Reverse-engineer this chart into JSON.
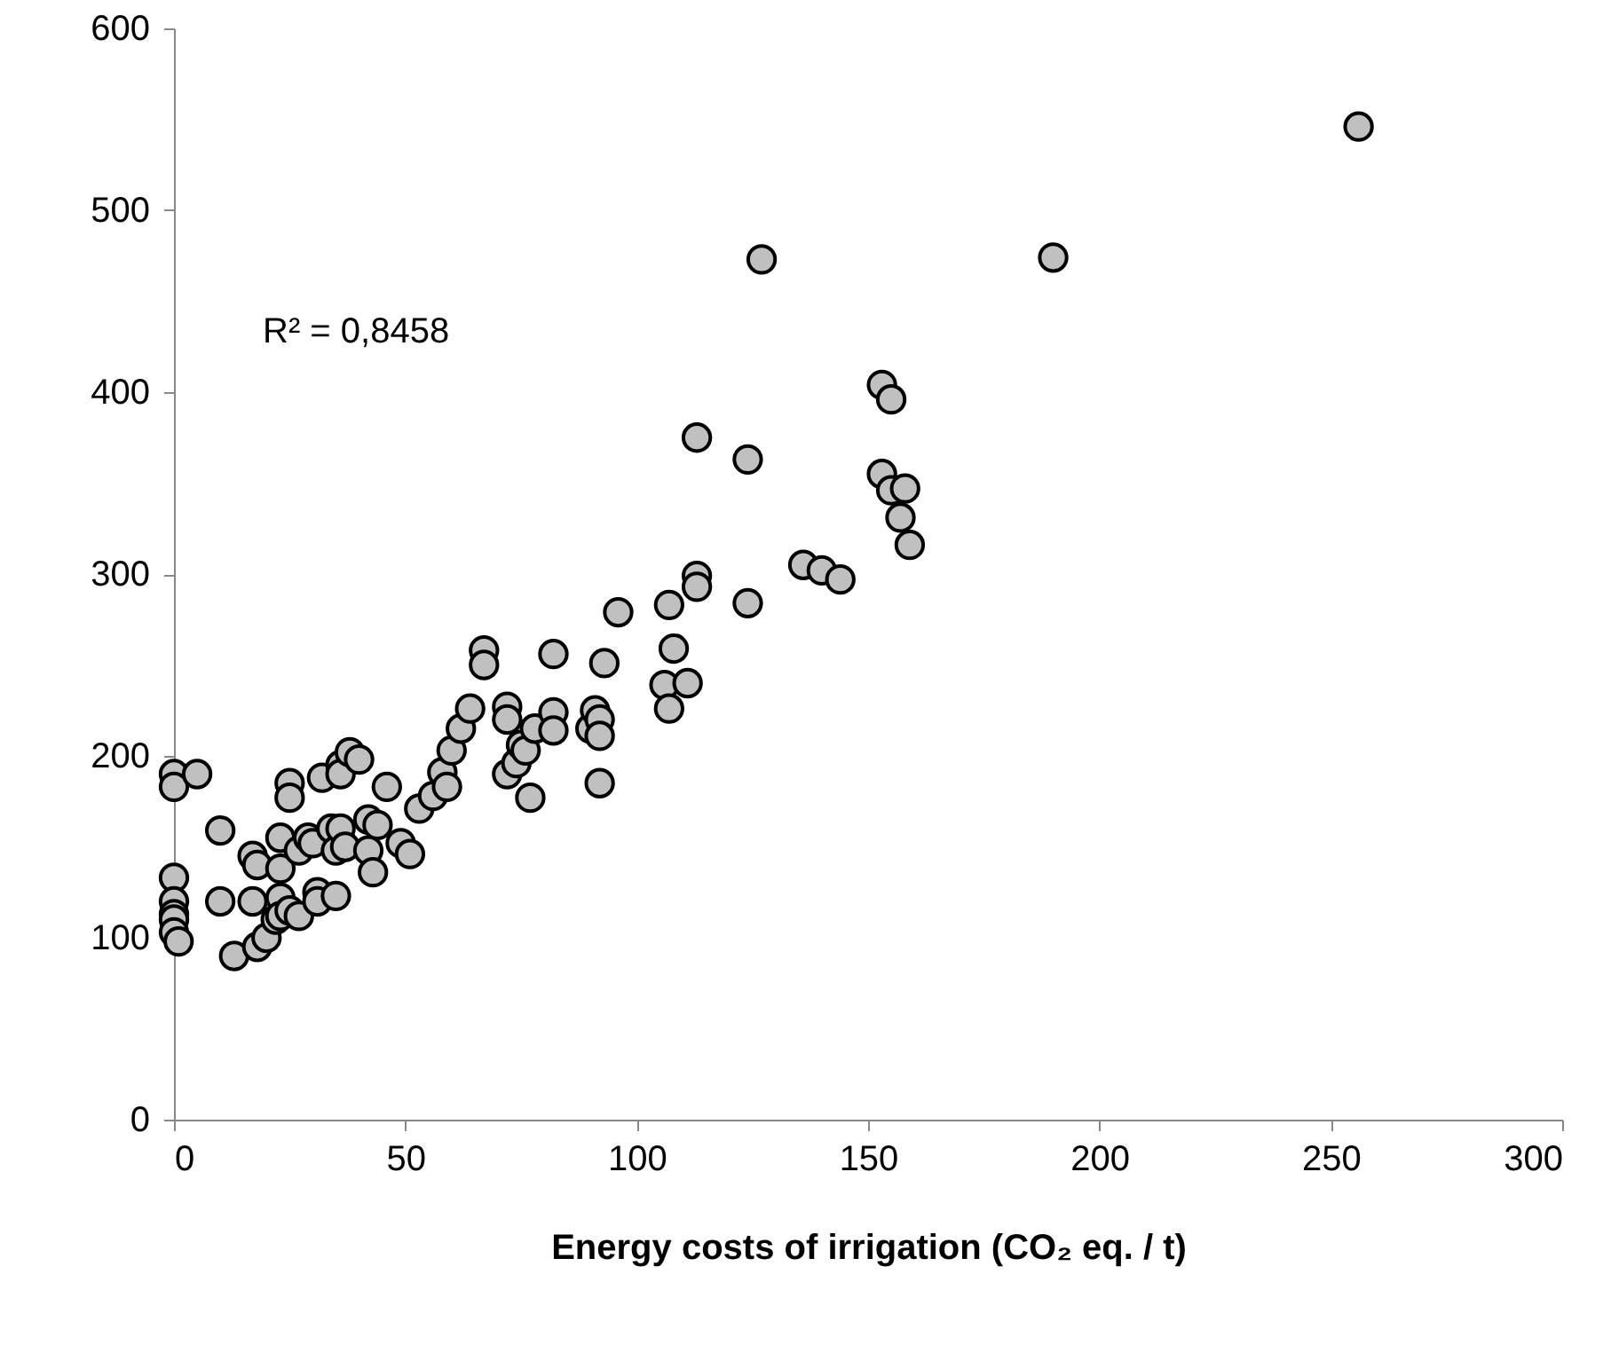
{
  "chart_data": {
    "type": "scatter",
    "xlabel": "Energy costs of irrigation (CO₂ eq. / t)",
    "annotations": [
      "R² = 0,8458"
    ],
    "xlim": [
      0,
      300
    ],
    "xticks": [
      0,
      50,
      100,
      150,
      200,
      250,
      300
    ],
    "ylim": [
      0,
      600
    ],
    "yticks": [
      0,
      100,
      200,
      300,
      400,
      500,
      600
    ],
    "grid": false,
    "marker": "circle",
    "series": [
      {
        "color": "#c0c0c0",
        "x": [
          0,
          0,
          0,
          0,
          0,
          0,
          0,
          1,
          5,
          10,
          10,
          13,
          17,
          17,
          18,
          18,
          20,
          22,
          23,
          23,
          23,
          23,
          25,
          25,
          25,
          27,
          27,
          29,
          30,
          31,
          31,
          32,
          34,
          35,
          35,
          36,
          36,
          36,
          37,
          38,
          40,
          42,
          42,
          43,
          44,
          46,
          49,
          51,
          53,
          56,
          58,
          59,
          60,
          62,
          64,
          67,
          67,
          72,
          72,
          72,
          74,
          75,
          76,
          77,
          78,
          82,
          82,
          82,
          90,
          91,
          92,
          92,
          92,
          93,
          96,
          106,
          107,
          107,
          108,
          111,
          113,
          113,
          113,
          124,
          124,
          127,
          136,
          140,
          144,
          153,
          153,
          155,
          155,
          157,
          158,
          159,
          190,
          256
        ],
        "values": [
          190,
          183,
          133,
          120,
          113,
          110,
          103,
          98,
          190,
          159,
          120,
          90,
          145,
          120,
          140,
          95,
          100,
          110,
          155,
          138,
          122,
          112,
          185,
          177,
          115,
          148,
          112,
          155,
          152,
          125,
          120,
          188,
          160,
          148,
          123,
          195,
          190,
          160,
          150,
          202,
          198,
          165,
          148,
          136,
          162,
          183,
          152,
          146,
          171,
          178,
          191,
          183,
          203,
          215,
          226,
          258,
          250,
          227,
          220,
          190,
          196,
          206,
          203,
          177,
          215,
          256,
          224,
          214,
          215,
          225,
          220,
          211,
          185,
          251,
          279,
          239,
          283,
          226,
          259,
          240,
          375,
          299,
          293,
          363,
          284,
          473,
          305,
          302,
          297,
          404,
          355,
          396,
          346,
          331,
          347,
          316,
          474,
          546
        ]
      }
    ]
  }
}
